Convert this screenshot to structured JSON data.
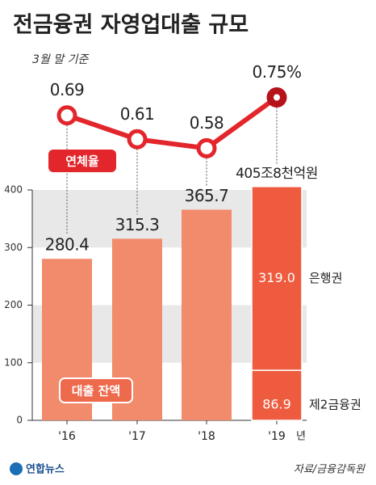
{
  "chart_data": {
    "type": "bar",
    "title": "전금융권 자영업대출 규모",
    "subtitle": "3월 말 기준",
    "categories": [
      "'16",
      "'17",
      "'18",
      "'19"
    ],
    "x_unit": "년",
    "ylim": [
      0,
      400
    ],
    "yticks": [
      0,
      100,
      200,
      300,
      400
    ],
    "grid": true,
    "totals": {
      "name": "대출 잔액",
      "color": "#f28a6c",
      "values": [
        280.4,
        315.3,
        365.7,
        405.8
      ],
      "value_labels": [
        "280.4",
        "315.3",
        "365.7",
        "405조8천억원"
      ]
    },
    "series": [
      {
        "name": "제2금융권",
        "color": "#ee5b3f",
        "values": [
          null,
          null,
          null,
          86.9
        ],
        "value_labels": [
          null,
          null,
          null,
          "86.9"
        ]
      },
      {
        "name": "은행권",
        "color": "#ee5b3f",
        "values": [
          null,
          null,
          null,
          319.0
        ],
        "value_labels": [
          null,
          null,
          null,
          "319.0"
        ]
      }
    ],
    "rate": {
      "name": "연체율",
      "color": "#e2262c",
      "axis": "y2",
      "values": [
        0.69,
        0.61,
        0.58,
        0.75
      ],
      "value_labels": [
        "0.69",
        "0.61",
        "0.58",
        "0.75%"
      ]
    },
    "y2lim": [
      0.4,
      0.8
    ],
    "source": "자료/금융감독원",
    "logo": "연합뉴스"
  }
}
